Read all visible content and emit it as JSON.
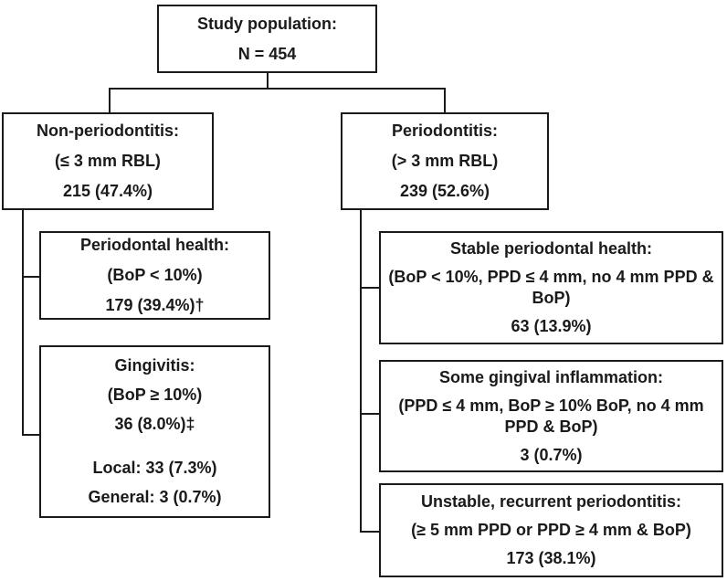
{
  "figure": {
    "root": {
      "title": "Study population:",
      "count": "N = 454"
    },
    "non_periodontitis": {
      "title": "Non-periodontitis:",
      "criteria": "(≤ 3 mm RBL)",
      "count": "215 (47.4%)"
    },
    "periodontitis": {
      "title": "Periodontitis:",
      "criteria": "(> 3 mm RBL)",
      "count": "239 (52.6%)"
    },
    "periodontal_health": {
      "title": "Periodontal health:",
      "criteria": "(BoP < 10%)",
      "count": "179 (39.4%)†"
    },
    "gingivitis": {
      "title": "Gingivitis:",
      "criteria": "(BoP ≥ 10%)",
      "count": "36 (8.0%)‡",
      "local": "Local: 33 (7.3%)",
      "general": "General: 3 (0.7%)"
    },
    "stable_periodontal_health": {
      "title": "Stable periodontal health:",
      "criteria": "(BoP < 10%, PPD ≤ 4 mm, no 4 mm PPD & BoP)",
      "count": "63 (13.9%)"
    },
    "some_gingival_inflammation": {
      "title": "Some gingival inflammation:",
      "criteria": "(PPD ≤ 4 mm, BoP ≥ 10% BoP, no 4 mm PPD & BoP)",
      "count": "3 (0.7%)"
    },
    "unstable_recurrent_periodontitis": {
      "title": "Unstable, recurrent periodontitis:",
      "criteria": "(≥ 5 mm PPD or PPD ≥ 4 mm & BoP)",
      "count": "173 (38.1%)"
    }
  },
  "colors": {
    "line": "#1a1a1a",
    "text": "#1a1a1a",
    "background": "#ffffff"
  }
}
